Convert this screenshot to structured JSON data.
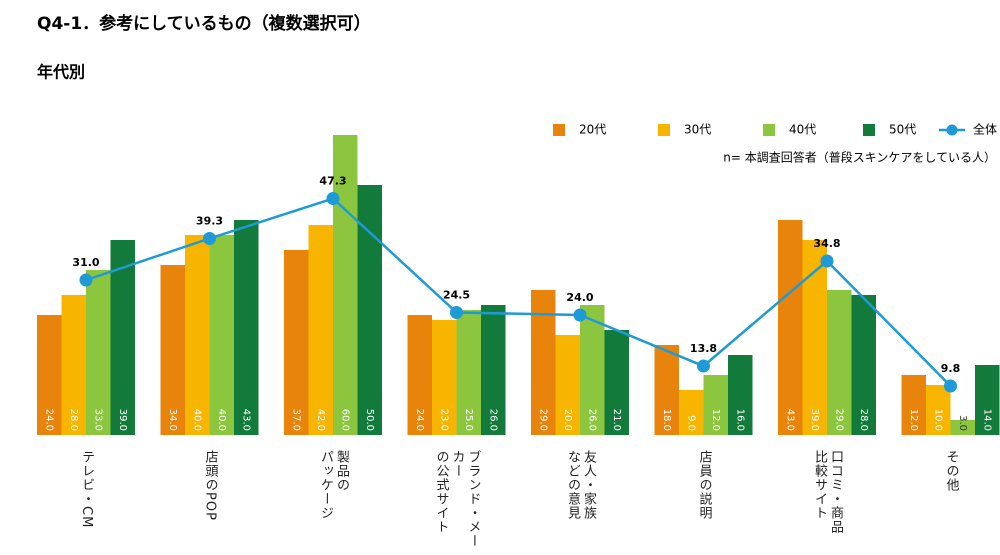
{
  "chart_data": {
    "type": "bar",
    "title": "Q4-1．参考にしているもの（複数選択可）",
    "subtitle": "年代別",
    "note": "n= 本調査回答者（普段スキンケアをしている人）",
    "categories": [
      "テレビ・CM",
      "店頭のPOP",
      "製品の\nパッケージ",
      "ブランド・メーカー\nの公式サイト",
      "友人・家族\nなどの意見",
      "店員の説明",
      "口コミ・商品\n比較サイト",
      "その他"
    ],
    "series": [
      {
        "name": "20代",
        "color": "#e8830c",
        "values": [
          24,
          34,
          37,
          24,
          29,
          18,
          43,
          12
        ],
        "value_labels": [
          "24.0",
          "34.0",
          "37.0",
          "24.0",
          "29.0",
          "18.0",
          "43.0",
          "12.0"
        ]
      },
      {
        "name": "30代",
        "color": "#f7b500",
        "values": [
          28,
          40,
          42,
          23,
          20,
          9,
          39,
          10
        ],
        "value_labels": [
          "28.0",
          "40.0",
          "42.0",
          "23.0",
          "20.0",
          "9.0",
          "39.0",
          "10.0"
        ]
      },
      {
        "name": "40代",
        "color": "#8cc63e",
        "values": [
          33,
          40,
          60,
          25,
          26,
          12,
          29,
          3
        ],
        "value_labels": [
          "33.0",
          "40.0",
          "60.0",
          "25.0",
          "26.0",
          "12.0",
          "29.0",
          "3.0"
        ]
      },
      {
        "name": "50代",
        "color": "#127a3a",
        "values": [
          39,
          43,
          50,
          26,
          21,
          16,
          28,
          14
        ],
        "value_labels": [
          "39.0",
          "43.0",
          "50.0",
          "26.0",
          "21.0",
          "16.0",
          "28.0",
          "14.0"
        ]
      },
      {
        "name": "全体",
        "type": "line",
        "color": "#1e9ad6",
        "values": [
          31.0,
          39.3,
          47.3,
          24.5,
          24.0,
          13.8,
          34.8,
          9.8
        ],
        "value_labels": [
          "31.0",
          "39.3",
          "47.3",
          "24.5",
          "24.0",
          "13.8",
          "34.8",
          "9.8"
        ]
      }
    ]
  }
}
